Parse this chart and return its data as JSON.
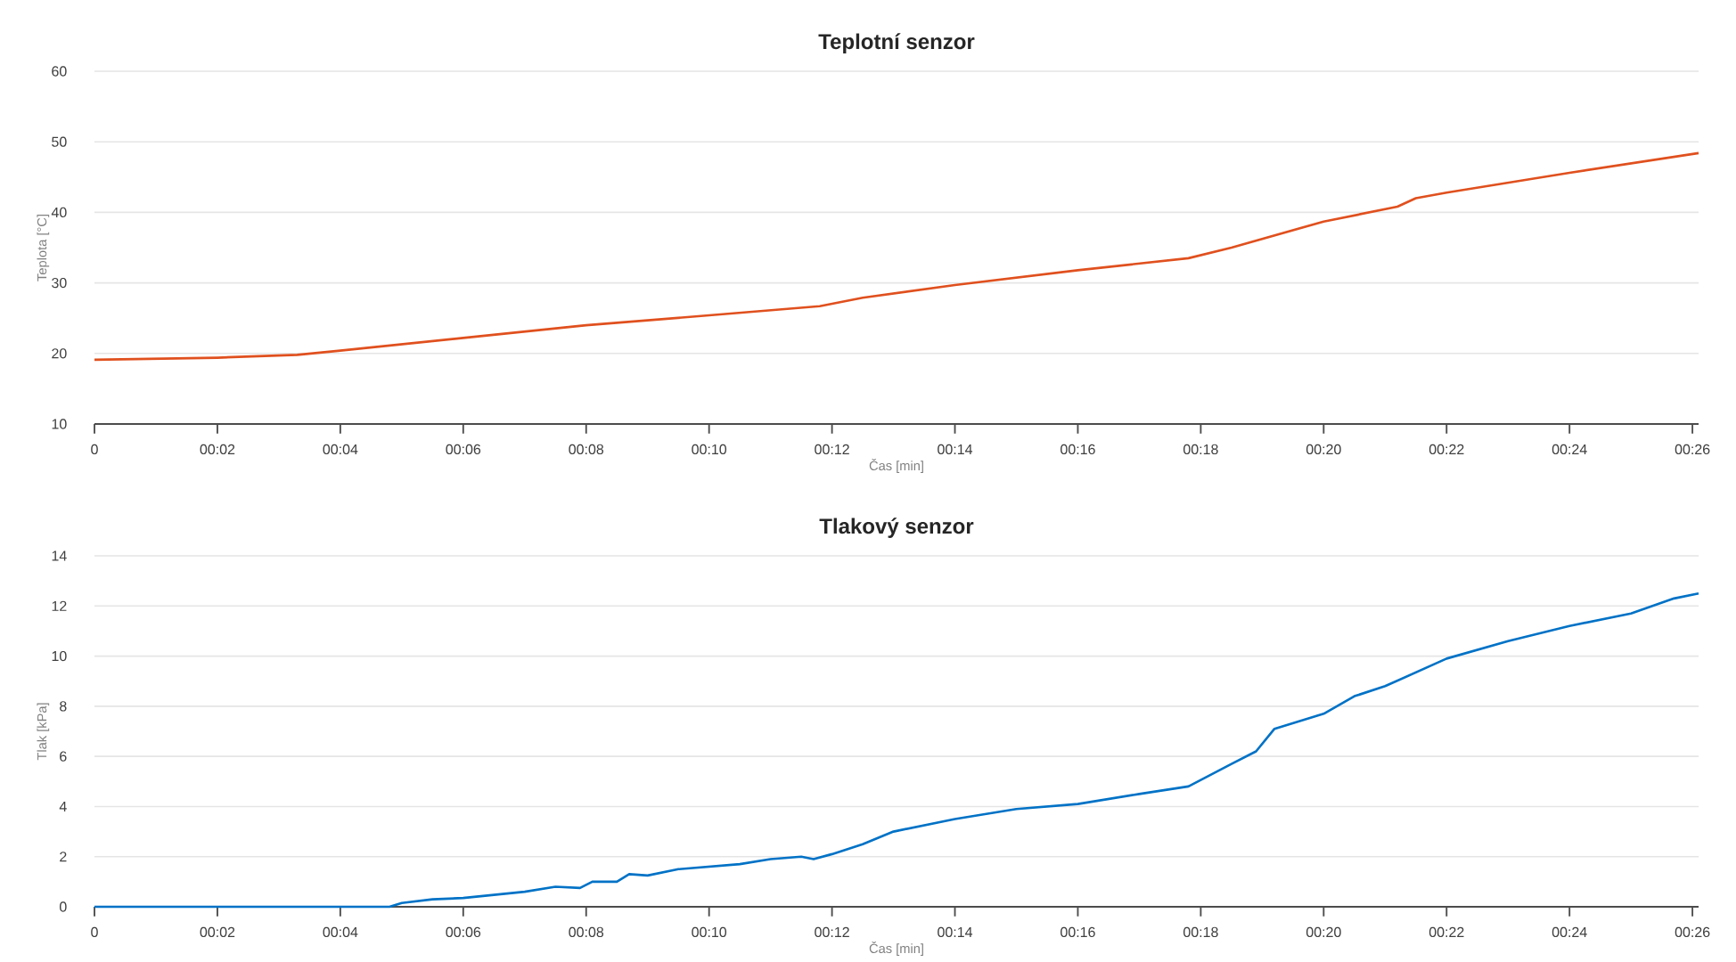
{
  "chart_data": [
    {
      "type": "line",
      "title": "Teplotní senzor",
      "xlabel": "Čas [min]",
      "ylabel": "Teplota [°C]",
      "color": "#e0501e",
      "grid": "y",
      "xlim": [
        0,
        26.1
      ],
      "ylim": [
        10,
        60
      ],
      "xticks": [
        0,
        {
          "value": 2,
          "label": "00:02"
        },
        {
          "value": 4,
          "label": "00:04"
        },
        {
          "value": 6,
          "label": "00:06"
        },
        {
          "value": 8,
          "label": "00:08"
        },
        {
          "value": 10,
          "label": "00:10"
        },
        {
          "value": 12,
          "label": "00:12"
        },
        {
          "value": 14,
          "label": "00:14"
        },
        {
          "value": 16,
          "label": "00:16"
        },
        {
          "value": 18,
          "label": "00:18"
        },
        {
          "value": 20,
          "label": "00:20"
        },
        {
          "value": 22,
          "label": "00:22"
        },
        {
          "value": 24,
          "label": "00:24"
        },
        {
          "value": 26,
          "label": "00:26"
        }
      ],
      "yticks": [
        10,
        20,
        30,
        40,
        50,
        60
      ],
      "x": [
        0,
        2,
        3.3,
        4,
        6,
        8,
        10,
        11.8,
        12.5,
        14,
        16,
        17.8,
        18.5,
        20,
        21.2,
        21.5,
        22,
        24,
        26.1
      ],
      "values": [
        19.1,
        19.4,
        19.8,
        20.4,
        22.2,
        24.0,
        25.4,
        26.7,
        27.9,
        29.7,
        31.8,
        33.5,
        35.0,
        38.7,
        40.8,
        42.0,
        42.8,
        45.6,
        48.4
      ]
    },
    {
      "type": "line",
      "title": "Tlakový senzor",
      "xlabel": "Čas [min]",
      "ylabel": "Tlak [kPa]",
      "color": "#0072c6",
      "grid": "y",
      "xlim": [
        0,
        26.1
      ],
      "ylim": [
        0,
        14
      ],
      "xticks": [
        0,
        {
          "value": 2,
          "label": "00:02"
        },
        {
          "value": 4,
          "label": "00:04"
        },
        {
          "value": 6,
          "label": "00:06"
        },
        {
          "value": 8,
          "label": "00:08"
        },
        {
          "value": 10,
          "label": "00:10"
        },
        {
          "value": 12,
          "label": "00:12"
        },
        {
          "value": 14,
          "label": "00:14"
        },
        {
          "value": 16,
          "label": "00:16"
        },
        {
          "value": 18,
          "label": "00:18"
        },
        {
          "value": 20,
          "label": "00:20"
        },
        {
          "value": 22,
          "label": "00:22"
        },
        {
          "value": 24,
          "label": "00:24"
        },
        {
          "value": 26,
          "label": "00:26"
        }
      ],
      "yticks": [
        0,
        2,
        4,
        6,
        8,
        10,
        12,
        14
      ],
      "x": [
        0,
        4.8,
        5.0,
        5.5,
        6,
        7,
        7.5,
        7.9,
        8.1,
        8.5,
        8.7,
        9,
        9.5,
        10,
        10.5,
        11,
        11.5,
        11.7,
        12,
        12.5,
        13,
        14,
        15,
        16,
        17,
        17.8,
        18.5,
        18.9,
        19.2,
        20,
        20.5,
        21,
        22,
        23,
        24,
        25,
        25.7,
        26.1
      ],
      "values": [
        0,
        0,
        0.15,
        0.3,
        0.35,
        0.6,
        0.8,
        0.75,
        1.0,
        1.0,
        1.3,
        1.25,
        1.5,
        1.6,
        1.7,
        1.9,
        2.0,
        1.9,
        2.1,
        2.5,
        3.0,
        3.5,
        3.9,
        4.1,
        4.5,
        4.8,
        5.7,
        6.2,
        7.1,
        7.7,
        8.4,
        8.8,
        9.9,
        10.6,
        11.2,
        11.7,
        12.3,
        12.5
      ]
    }
  ]
}
